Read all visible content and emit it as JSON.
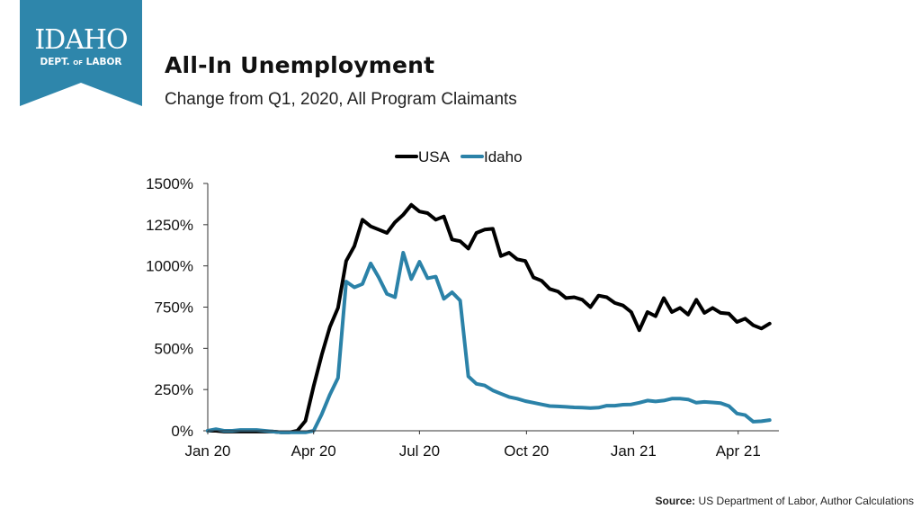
{
  "logo": {
    "word": "IDAHO",
    "line2_left": "DEPT.",
    "line2_of": "OF",
    "line2_right": "LABOR",
    "color": "#2e86ab"
  },
  "header": {
    "title": "All-In Unemployment",
    "subtitle": "Change from Q1, 2020, All Program Claimants"
  },
  "source": {
    "label": "Source:",
    "text": "US Department of Labor, Author Calculations"
  },
  "chart_data": {
    "type": "line",
    "title": "",
    "xlabel": "",
    "ylabel": "",
    "ylim": [
      0,
      1500
    ],
    "yticks": [
      "0%",
      "250%",
      "500%",
      "750%",
      "1000%",
      "1250%",
      "1500%"
    ],
    "yvalues": [
      0,
      250,
      500,
      750,
      1000,
      1250,
      1500
    ],
    "x_range": [
      "2020-01-01",
      "2021-05-06"
    ],
    "xticks": [
      {
        "label": "Jan 20",
        "date": "2020-01-01"
      },
      {
        "label": "Apr 20",
        "date": "2020-04-01"
      },
      {
        "label": "Jul 20",
        "date": "2020-07-01"
      },
      {
        "label": "Oct 20",
        "date": "2020-10-01"
      },
      {
        "label": "Jan 21",
        "date": "2021-01-01"
      },
      {
        "label": "Apr 21",
        "date": "2021-04-01"
      }
    ],
    "legend_position": "top-center",
    "grid": false,
    "series": [
      {
        "name": "USA",
        "color": "#000000",
        "points": [
          [
            "2020-01-01",
            0
          ],
          [
            "2020-01-08",
            0
          ],
          [
            "2020-01-15",
            -5
          ],
          [
            "2020-01-22",
            -5
          ],
          [
            "2020-01-29",
            -5
          ],
          [
            "2020-02-05",
            -5
          ],
          [
            "2020-02-12",
            -5
          ],
          [
            "2020-02-19",
            -5
          ],
          [
            "2020-02-26",
            -5
          ],
          [
            "2020-03-04",
            -10
          ],
          [
            "2020-03-11",
            -10
          ],
          [
            "2020-03-18",
            0
          ],
          [
            "2020-03-25",
            60
          ],
          [
            "2020-04-01",
            270
          ],
          [
            "2020-04-08",
            460
          ],
          [
            "2020-04-15",
            630
          ],
          [
            "2020-04-22",
            745
          ],
          [
            "2020-04-29",
            1030
          ],
          [
            "2020-05-06",
            1120
          ],
          [
            "2020-05-13",
            1280
          ],
          [
            "2020-05-20",
            1240
          ],
          [
            "2020-05-27",
            1220
          ],
          [
            "2020-06-03",
            1200
          ],
          [
            "2020-06-10",
            1265
          ],
          [
            "2020-06-17",
            1310
          ],
          [
            "2020-06-24",
            1370
          ],
          [
            "2020-07-01",
            1330
          ],
          [
            "2020-07-08",
            1320
          ],
          [
            "2020-07-15",
            1280
          ],
          [
            "2020-07-22",
            1300
          ],
          [
            "2020-07-29",
            1160
          ],
          [
            "2020-08-05",
            1150
          ],
          [
            "2020-08-12",
            1105
          ],
          [
            "2020-08-19",
            1200
          ],
          [
            "2020-08-26",
            1220
          ],
          [
            "2020-09-02",
            1225
          ],
          [
            "2020-09-09",
            1060
          ],
          [
            "2020-09-16",
            1080
          ],
          [
            "2020-09-23",
            1040
          ],
          [
            "2020-09-30",
            1030
          ],
          [
            "2020-10-07",
            930
          ],
          [
            "2020-10-14",
            910
          ],
          [
            "2020-10-21",
            860
          ],
          [
            "2020-10-28",
            845
          ],
          [
            "2020-11-04",
            805
          ],
          [
            "2020-11-11",
            810
          ],
          [
            "2020-11-18",
            795
          ],
          [
            "2020-11-25",
            750
          ],
          [
            "2020-12-02",
            820
          ],
          [
            "2020-12-09",
            810
          ],
          [
            "2020-12-16",
            775
          ],
          [
            "2020-12-23",
            760
          ],
          [
            "2020-12-30",
            720
          ],
          [
            "2021-01-06",
            610
          ],
          [
            "2021-01-13",
            720
          ],
          [
            "2021-01-20",
            695
          ],
          [
            "2021-01-27",
            805
          ],
          [
            "2021-02-03",
            720
          ],
          [
            "2021-02-10",
            745
          ],
          [
            "2021-02-17",
            705
          ],
          [
            "2021-02-24",
            795
          ],
          [
            "2021-03-03",
            715
          ],
          [
            "2021-03-10",
            745
          ],
          [
            "2021-03-17",
            715
          ],
          [
            "2021-03-24",
            710
          ],
          [
            "2021-03-31",
            660
          ],
          [
            "2021-04-07",
            680
          ],
          [
            "2021-04-14",
            640
          ],
          [
            "2021-04-21",
            620
          ],
          [
            "2021-04-28",
            650
          ]
        ]
      },
      {
        "name": "Idaho",
        "color": "#2b82a8",
        "points": [
          [
            "2020-01-01",
            0
          ],
          [
            "2020-01-08",
            10
          ],
          [
            "2020-01-15",
            0
          ],
          [
            "2020-01-22",
            0
          ],
          [
            "2020-01-29",
            5
          ],
          [
            "2020-02-05",
            5
          ],
          [
            "2020-02-12",
            5
          ],
          [
            "2020-02-19",
            0
          ],
          [
            "2020-02-26",
            -5
          ],
          [
            "2020-03-04",
            -10
          ],
          [
            "2020-03-11",
            -10
          ],
          [
            "2020-03-18",
            -10
          ],
          [
            "2020-03-25",
            -10
          ],
          [
            "2020-04-01",
            0
          ],
          [
            "2020-04-08",
            100
          ],
          [
            "2020-04-15",
            220
          ],
          [
            "2020-04-22",
            320
          ],
          [
            "2020-04-29",
            905
          ],
          [
            "2020-05-06",
            870
          ],
          [
            "2020-05-13",
            890
          ],
          [
            "2020-05-20",
            1015
          ],
          [
            "2020-05-27",
            930
          ],
          [
            "2020-06-03",
            830
          ],
          [
            "2020-06-10",
            810
          ],
          [
            "2020-06-17",
            1080
          ],
          [
            "2020-06-24",
            920
          ],
          [
            "2020-07-01",
            1025
          ],
          [
            "2020-07-08",
            925
          ],
          [
            "2020-07-15",
            935
          ],
          [
            "2020-07-22",
            800
          ],
          [
            "2020-07-29",
            840
          ],
          [
            "2020-08-05",
            790
          ],
          [
            "2020-08-12",
            330
          ],
          [
            "2020-08-19",
            285
          ],
          [
            "2020-08-26",
            275
          ],
          [
            "2020-09-02",
            245
          ],
          [
            "2020-09-09",
            225
          ],
          [
            "2020-09-16",
            205
          ],
          [
            "2020-09-23",
            195
          ],
          [
            "2020-09-30",
            180
          ],
          [
            "2020-10-07",
            170
          ],
          [
            "2020-10-14",
            160
          ],
          [
            "2020-10-21",
            150
          ],
          [
            "2020-10-28",
            148
          ],
          [
            "2020-11-04",
            145
          ],
          [
            "2020-11-11",
            142
          ],
          [
            "2020-11-18",
            140
          ],
          [
            "2020-11-25",
            138
          ],
          [
            "2020-12-02",
            140
          ],
          [
            "2020-12-09",
            152
          ],
          [
            "2020-12-16",
            152
          ],
          [
            "2020-12-23",
            158
          ],
          [
            "2020-12-30",
            160
          ],
          [
            "2021-01-06",
            170
          ],
          [
            "2021-01-13",
            183
          ],
          [
            "2021-01-20",
            178
          ],
          [
            "2021-01-27",
            183
          ],
          [
            "2021-02-03",
            195
          ],
          [
            "2021-02-10",
            195
          ],
          [
            "2021-02-17",
            190
          ],
          [
            "2021-02-24",
            170
          ],
          [
            "2021-03-03",
            175
          ],
          [
            "2021-03-10",
            172
          ],
          [
            "2021-03-17",
            168
          ],
          [
            "2021-03-24",
            150
          ],
          [
            "2021-03-31",
            105
          ],
          [
            "2021-04-07",
            95
          ],
          [
            "2021-04-14",
            55
          ],
          [
            "2021-04-21",
            58
          ],
          [
            "2021-04-28",
            65
          ]
        ]
      }
    ]
  }
}
